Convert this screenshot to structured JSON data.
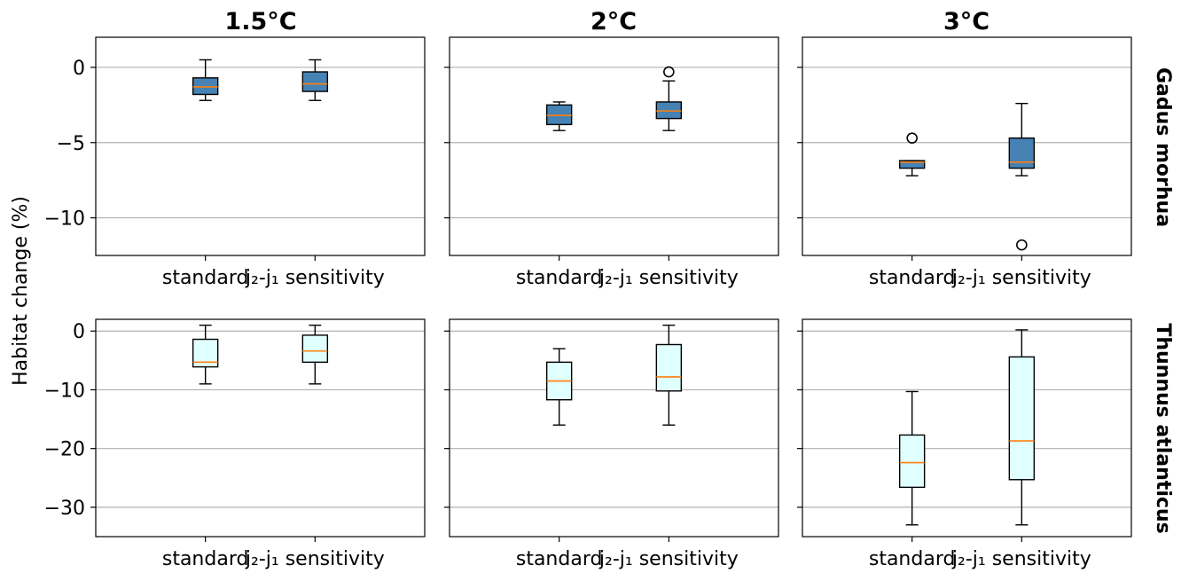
{
  "figure": {
    "ylabel": "Habitat change (%)",
    "column_titles": [
      "1.5°C",
      "2°C",
      "3°C"
    ],
    "row_titles": [
      "Gadus morhua",
      "Thunnus atlanticus"
    ],
    "category_labels": [
      "standard",
      "j₂-j₁ sensitivity"
    ]
  },
  "colors": {
    "row_box_fill": [
      "#4682b4",
      "#e0ffff"
    ],
    "median": "#ff7f0e",
    "grid": "#b0b0b0"
  },
  "chart_data": [
    {
      "type": "boxplot",
      "row": 0,
      "col": 0,
      "title": "1.5°C",
      "species": "Gadus morhua",
      "categories": [
        "standard",
        "j₂-j₁ sensitivity"
      ],
      "ylim": [
        -12.5,
        2
      ],
      "yticks": [
        0,
        -5,
        -10
      ],
      "ytick_labels": [
        "0",
        "−5",
        "−10"
      ],
      "grid": "y",
      "boxes": [
        {
          "whislo": -2.2,
          "q1": -1.8,
          "med": -1.3,
          "q3": -0.7,
          "whishi": 0.5,
          "fliers": []
        },
        {
          "whislo": -2.2,
          "q1": -1.6,
          "med": -1.1,
          "q3": -0.3,
          "whishi": 0.5,
          "fliers": []
        }
      ]
    },
    {
      "type": "boxplot",
      "row": 0,
      "col": 1,
      "title": "2°C",
      "species": "Gadus morhua",
      "categories": [
        "standard",
        "j₂-j₁ sensitivity"
      ],
      "ylim": [
        -12.5,
        2
      ],
      "yticks": [
        0,
        -5,
        -10
      ],
      "ytick_labels": [
        "0",
        "−5",
        "−10"
      ],
      "grid": "y",
      "boxes": [
        {
          "whislo": -4.2,
          "q1": -3.8,
          "med": -3.2,
          "q3": -2.5,
          "whishi": -2.3,
          "fliers": []
        },
        {
          "whislo": -4.2,
          "q1": -3.4,
          "med": -2.9,
          "q3": -2.3,
          "whishi": -0.9,
          "fliers": [
            -0.3
          ]
        }
      ]
    },
    {
      "type": "boxplot",
      "row": 0,
      "col": 2,
      "title": "3°C",
      "species": "Gadus morhua",
      "categories": [
        "standard",
        "j₂-j₁ sensitivity"
      ],
      "ylim": [
        -12.5,
        2
      ],
      "yticks": [
        0,
        -5,
        -10
      ],
      "ytick_labels": [
        "0",
        "−5",
        "−10"
      ],
      "grid": "y",
      "boxes": [
        {
          "whislo": -7.2,
          "q1": -6.7,
          "med": -6.3,
          "q3": -6.2,
          "whishi": -6.2,
          "fliers": [
            -4.7
          ]
        },
        {
          "whislo": -7.2,
          "q1": -6.7,
          "med": -6.3,
          "q3": -4.7,
          "whishi": -2.4,
          "fliers": [
            -11.8
          ]
        }
      ]
    },
    {
      "type": "boxplot",
      "row": 1,
      "col": 0,
      "title": "1.5°C",
      "species": "Thunnus atlanticus",
      "categories": [
        "standard",
        "j₂-j₁ sensitivity"
      ],
      "ylim": [
        -35,
        2
      ],
      "yticks": [
        0,
        -10,
        -20,
        -30
      ],
      "ytick_labels": [
        "0",
        "−10",
        "−20",
        "−30"
      ],
      "grid": "y",
      "boxes": [
        {
          "whislo": -9.0,
          "q1": -6.1,
          "med": -5.3,
          "q3": -1.4,
          "whishi": 1.0,
          "fliers": []
        },
        {
          "whislo": -9.0,
          "q1": -5.3,
          "med": -3.4,
          "q3": -0.7,
          "whishi": 1.0,
          "fliers": []
        }
      ]
    },
    {
      "type": "boxplot",
      "row": 1,
      "col": 1,
      "title": "2°C",
      "species": "Thunnus atlanticus",
      "categories": [
        "standard",
        "j₂-j₁ sensitivity"
      ],
      "ylim": [
        -35,
        2
      ],
      "yticks": [
        0,
        -10,
        -20,
        -30
      ],
      "ytick_labels": [
        "0",
        "−10",
        "−20",
        "−30"
      ],
      "grid": "y",
      "boxes": [
        {
          "whislo": -16.0,
          "q1": -11.7,
          "med": -8.5,
          "q3": -5.3,
          "whishi": -3.0,
          "fliers": []
        },
        {
          "whislo": -16.0,
          "q1": -10.2,
          "med": -7.8,
          "q3": -2.3,
          "whishi": 1.0,
          "fliers": []
        }
      ]
    },
    {
      "type": "boxplot",
      "row": 1,
      "col": 2,
      "title": "3°C",
      "species": "Thunnus atlanticus",
      "categories": [
        "standard",
        "j₂-j₁ sensitivity"
      ],
      "ylim": [
        -35,
        2
      ],
      "yticks": [
        0,
        -10,
        -20,
        -30
      ],
      "ytick_labels": [
        "0",
        "−10",
        "−20",
        "−30"
      ],
      "grid": "y",
      "boxes": [
        {
          "whislo": -33.0,
          "q1": -26.6,
          "med": -22.4,
          "q3": -17.7,
          "whishi": -10.3,
          "fliers": []
        },
        {
          "whislo": -33.0,
          "q1": -25.3,
          "med": -18.7,
          "q3": -4.4,
          "whishi": 0.2,
          "fliers": []
        }
      ]
    }
  ]
}
